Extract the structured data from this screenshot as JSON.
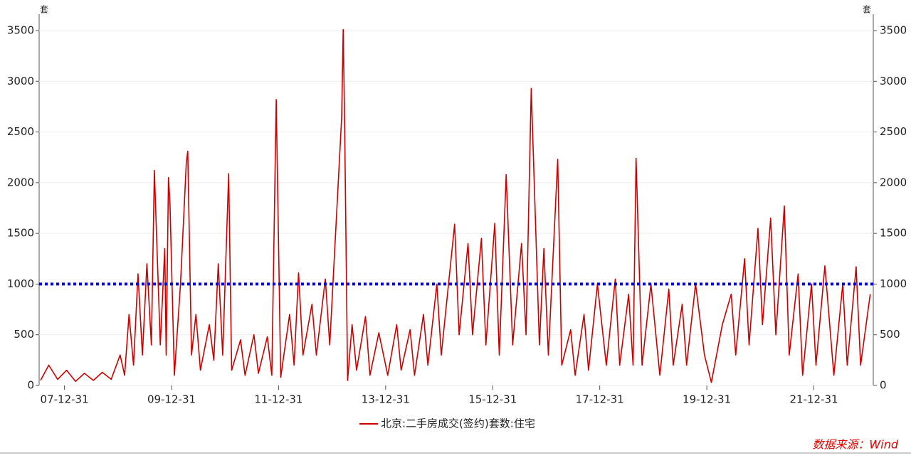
{
  "chart_data": {
    "type": "line",
    "y_unit": "套",
    "y2_unit": "套",
    "source": "数据来源：Wind",
    "x": [
      "07-07-20",
      "07-09-15",
      "07-11-15",
      "08-01-15",
      "08-03-15",
      "08-05-15",
      "08-07-15",
      "08-09-15",
      "08-11-15",
      "09-01-15",
      "09-02-15",
      "09-03-15",
      "09-04-15",
      "09-05-15",
      "09-06-15",
      "09-07-15",
      "09-08-15",
      "09-09-05",
      "09-10-15",
      "09-11-15",
      "09-11-25",
      "09-12-10",
      "09-12-20",
      "10-01-20",
      "10-03-01",
      "10-04-10",
      "10-04-20",
      "10-05-15",
      "10-06-15",
      "10-07-15",
      "10-09-15",
      "10-10-15",
      "10-11-15",
      "10-12-15",
      "11-01-25",
      "11-02-15",
      "11-04-15",
      "11-05-15",
      "11-07-15",
      "11-08-15",
      "11-10-15",
      "11-11-15",
      "11-12-15",
      "12-01-15",
      "12-03-15",
      "12-04-15",
      "12-05-15",
      "12-06-15",
      "12-08-15",
      "12-09-15",
      "12-11-15",
      "12-12-15",
      "13-03-05",
      "13-03-15",
      "13-03-25",
      "13-04-15",
      "13-05-15",
      "13-06-15",
      "13-08-15",
      "13-09-15",
      "13-11-15",
      "14-01-15",
      "14-03-15",
      "14-04-15",
      "14-06-15",
      "14-07-15",
      "14-09-15",
      "14-10-15",
      "14-12-15",
      "15-01-15",
      "15-04-15",
      "15-05-15",
      "15-07-15",
      "15-08-15",
      "15-10-15",
      "15-11-15",
      "16-01-15",
      "16-02-15",
      "16-04-01",
      "16-05-15",
      "16-07-15",
      "16-08-15",
      "16-09-20",
      "16-11-15",
      "16-12-15",
      "17-01-15",
      "17-03-18",
      "17-04-15",
      "17-06-15",
      "17-07-15",
      "17-09-15",
      "17-10-15",
      "17-12-15",
      "18-02-15",
      "18-04-15",
      "18-05-15",
      "18-07-15",
      "18-08-15",
      "18-09-05",
      "18-10-15",
      "18-12-15",
      "19-02-15",
      "19-04-15",
      "19-05-15",
      "19-07-15",
      "19-08-15",
      "19-10-15",
      "19-12-15",
      "20-02-01",
      "20-04-15",
      "20-06-15",
      "20-07-15",
      "20-09-15",
      "20-10-15",
      "20-12-15",
      "21-01-15",
      "21-03-10",
      "21-04-15",
      "21-06-12",
      "21-07-15",
      "21-09-15",
      "21-10-15",
      "21-12-15",
      "22-01-15",
      "22-03-15",
      "22-05-15",
      "22-07-15",
      "22-08-15",
      "22-10-15",
      "22-11-15",
      "23-01-20"
    ],
    "series": [
      {
        "name": "北京:二手房成交(签约)套数:住宅",
        "color": "#cc0000",
        "values": [
          50,
          200,
          60,
          150,
          40,
          120,
          50,
          130,
          60,
          300,
          100,
          700,
          200,
          1100,
          300,
          1200,
          400,
          2120,
          400,
          1350,
          300,
          2050,
          1800,
          100,
          1000,
          2200,
          2310,
          300,
          700,
          150,
          600,
          250,
          1200,
          300,
          2090,
          150,
          450,
          100,
          500,
          120,
          480,
          100,
          2820,
          80,
          700,
          200,
          1110,
          300,
          800,
          300,
          1050,
          400,
          2650,
          3510,
          2600,
          50,
          600,
          150,
          680,
          100,
          520,
          100,
          600,
          150,
          550,
          100,
          700,
          200,
          1000,
          300,
          1590,
          500,
          1400,
          500,
          1450,
          400,
          1600,
          300,
          2080,
          400,
          1400,
          500,
          2930,
          400,
          1350,
          300,
          2230,
          200,
          550,
          100,
          700,
          150,
          1000,
          200,
          1050,
          200,
          900,
          200,
          2240,
          200,
          1000,
          100,
          950,
          200,
          800,
          200,
          1000,
          300,
          30,
          600,
          900,
          300,
          1250,
          400,
          1550,
          600,
          1650,
          500,
          1770,
          300,
          1100,
          100,
          1000,
          200,
          1180,
          100,
          1000,
          200,
          1170,
          200,
          900
        ]
      }
    ],
    "reference_lines": [
      {
        "value": 1000,
        "color": "#0000ee"
      }
    ],
    "xlim": [
      "07-07-20",
      "23-01-31"
    ],
    "xticks": [
      "07-12-31",
      "09-12-31",
      "11-12-31",
      "13-12-31",
      "15-12-31",
      "17-12-31",
      "19-12-31",
      "21-12-31"
    ],
    "ylim": [
      0,
      3500
    ],
    "yticks": [
      0,
      500,
      1000,
      1500,
      2000,
      2500,
      3000,
      3500
    ],
    "y2lim": [
      0,
      3500
    ],
    "y2ticks": [
      0,
      500,
      1000,
      1500,
      2000,
      2500,
      3000,
      3500
    ],
    "grid": true
  }
}
